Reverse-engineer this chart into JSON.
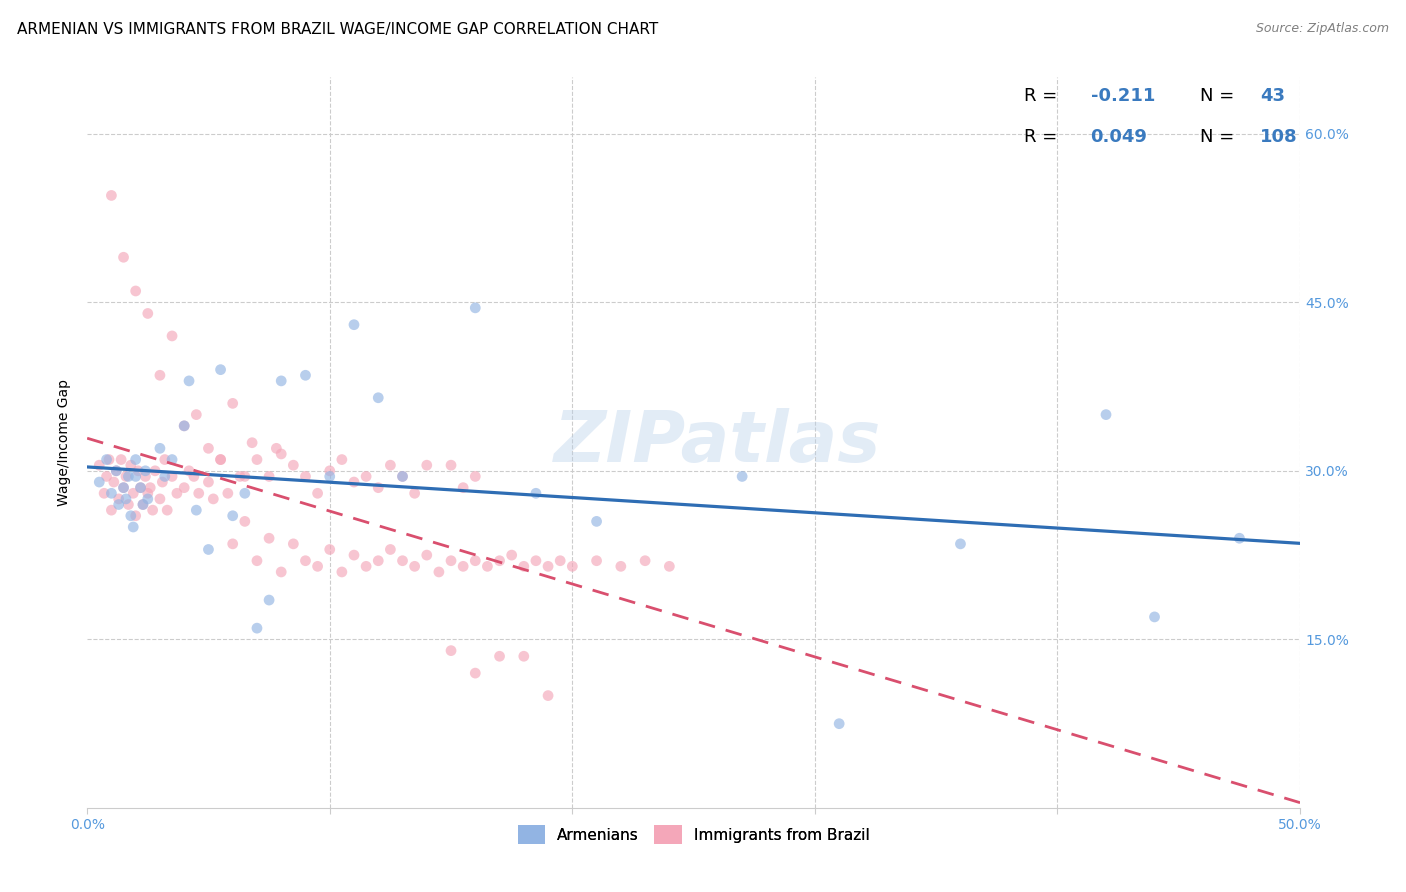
{
  "title": "ARMENIAN VS IMMIGRANTS FROM BRAZIL WAGE/INCOME GAP CORRELATION CHART",
  "source": "Source: ZipAtlas.com",
  "ylabel": "Wage/Income Gap",
  "xlim": [
    0.0,
    0.5
  ],
  "ylim": [
    0.0,
    0.65
  ],
  "xtick_positions": [
    0.0,
    0.1,
    0.2,
    0.3,
    0.4,
    0.5
  ],
  "xtick_labels": [
    "0.0%",
    "",
    "",
    "",
    "",
    "50.0%"
  ],
  "ytick_labels_right": [
    "15.0%",
    "30.0%",
    "45.0%",
    "60.0%"
  ],
  "ytick_positions_right": [
    0.15,
    0.3,
    0.45,
    0.6
  ],
  "r1_label": "R = ",
  "r1_val": "-0.211",
  "n1_label": "N = ",
  "n1_val": " 43",
  "r2_label": "R = ",
  "r2_val": "0.049",
  "n2_label": "N = ",
  "n2_val": "108",
  "color_armenian": "#92b4e3",
  "color_brazil": "#f4a7b9",
  "color_line_armenian": "#2e6db4",
  "color_line_brazil": "#d94f6e",
  "color_text_blue": "#3a7abf",
  "color_axis_ticks": "#5599dd",
  "watermark": "ZIPatlas",
  "armenian_x": [
    0.005,
    0.008,
    0.01,
    0.012,
    0.013,
    0.015,
    0.016,
    0.017,
    0.018,
    0.019,
    0.02,
    0.02,
    0.022,
    0.023,
    0.024,
    0.025,
    0.03,
    0.032,
    0.035,
    0.04,
    0.042,
    0.045,
    0.05,
    0.055,
    0.06,
    0.065,
    0.07,
    0.075,
    0.08,
    0.09,
    0.1,
    0.11,
    0.12,
    0.13,
    0.16,
    0.185,
    0.21,
    0.27,
    0.31,
    0.36,
    0.42,
    0.44,
    0.475
  ],
  "armenian_y": [
    0.29,
    0.31,
    0.28,
    0.3,
    0.27,
    0.285,
    0.275,
    0.295,
    0.26,
    0.25,
    0.31,
    0.295,
    0.285,
    0.27,
    0.3,
    0.275,
    0.32,
    0.295,
    0.31,
    0.34,
    0.38,
    0.265,
    0.23,
    0.39,
    0.26,
    0.28,
    0.16,
    0.185,
    0.38,
    0.385,
    0.295,
    0.43,
    0.365,
    0.295,
    0.445,
    0.28,
    0.255,
    0.295,
    0.075,
    0.235,
    0.35,
    0.17,
    0.24
  ],
  "brazil_x": [
    0.005,
    0.007,
    0.008,
    0.009,
    0.01,
    0.011,
    0.012,
    0.013,
    0.014,
    0.015,
    0.016,
    0.017,
    0.018,
    0.019,
    0.02,
    0.021,
    0.022,
    0.023,
    0.024,
    0.025,
    0.026,
    0.027,
    0.028,
    0.03,
    0.031,
    0.032,
    0.033,
    0.035,
    0.037,
    0.04,
    0.042,
    0.044,
    0.046,
    0.05,
    0.052,
    0.055,
    0.058,
    0.06,
    0.063,
    0.065,
    0.068,
    0.07,
    0.075,
    0.078,
    0.08,
    0.085,
    0.09,
    0.095,
    0.1,
    0.105,
    0.11,
    0.115,
    0.12,
    0.125,
    0.13,
    0.135,
    0.14,
    0.15,
    0.155,
    0.16,
    0.03,
    0.035,
    0.04,
    0.045,
    0.05,
    0.055,
    0.01,
    0.015,
    0.02,
    0.025,
    0.06,
    0.065,
    0.07,
    0.075,
    0.08,
    0.085,
    0.09,
    0.095,
    0.1,
    0.105,
    0.11,
    0.115,
    0.12,
    0.125,
    0.13,
    0.135,
    0.14,
    0.145,
    0.15,
    0.155,
    0.16,
    0.165,
    0.17,
    0.175,
    0.18,
    0.185,
    0.19,
    0.195,
    0.2,
    0.21,
    0.22,
    0.23,
    0.24,
    0.17,
    0.18,
    0.15,
    0.16,
    0.19
  ],
  "brazil_y": [
    0.305,
    0.28,
    0.295,
    0.31,
    0.265,
    0.29,
    0.3,
    0.275,
    0.31,
    0.285,
    0.295,
    0.27,
    0.305,
    0.28,
    0.26,
    0.3,
    0.285,
    0.27,
    0.295,
    0.28,
    0.285,
    0.265,
    0.3,
    0.275,
    0.29,
    0.31,
    0.265,
    0.295,
    0.28,
    0.285,
    0.3,
    0.295,
    0.28,
    0.29,
    0.275,
    0.31,
    0.28,
    0.36,
    0.295,
    0.295,
    0.325,
    0.31,
    0.295,
    0.32,
    0.315,
    0.305,
    0.295,
    0.28,
    0.3,
    0.31,
    0.29,
    0.295,
    0.285,
    0.305,
    0.295,
    0.28,
    0.305,
    0.305,
    0.285,
    0.295,
    0.385,
    0.42,
    0.34,
    0.35,
    0.32,
    0.31,
    0.545,
    0.49,
    0.46,
    0.44,
    0.235,
    0.255,
    0.22,
    0.24,
    0.21,
    0.235,
    0.22,
    0.215,
    0.23,
    0.21,
    0.225,
    0.215,
    0.22,
    0.23,
    0.22,
    0.215,
    0.225,
    0.21,
    0.22,
    0.215,
    0.22,
    0.215,
    0.22,
    0.225,
    0.215,
    0.22,
    0.215,
    0.22,
    0.215,
    0.22,
    0.215,
    0.22,
    0.215,
    0.135,
    0.135,
    0.14,
    0.12,
    0.1
  ],
  "background_color": "#ffffff",
  "grid_color": "#cccccc",
  "title_fontsize": 11,
  "source_fontsize": 9,
  "marker_size": 60,
  "alpha": 0.65
}
